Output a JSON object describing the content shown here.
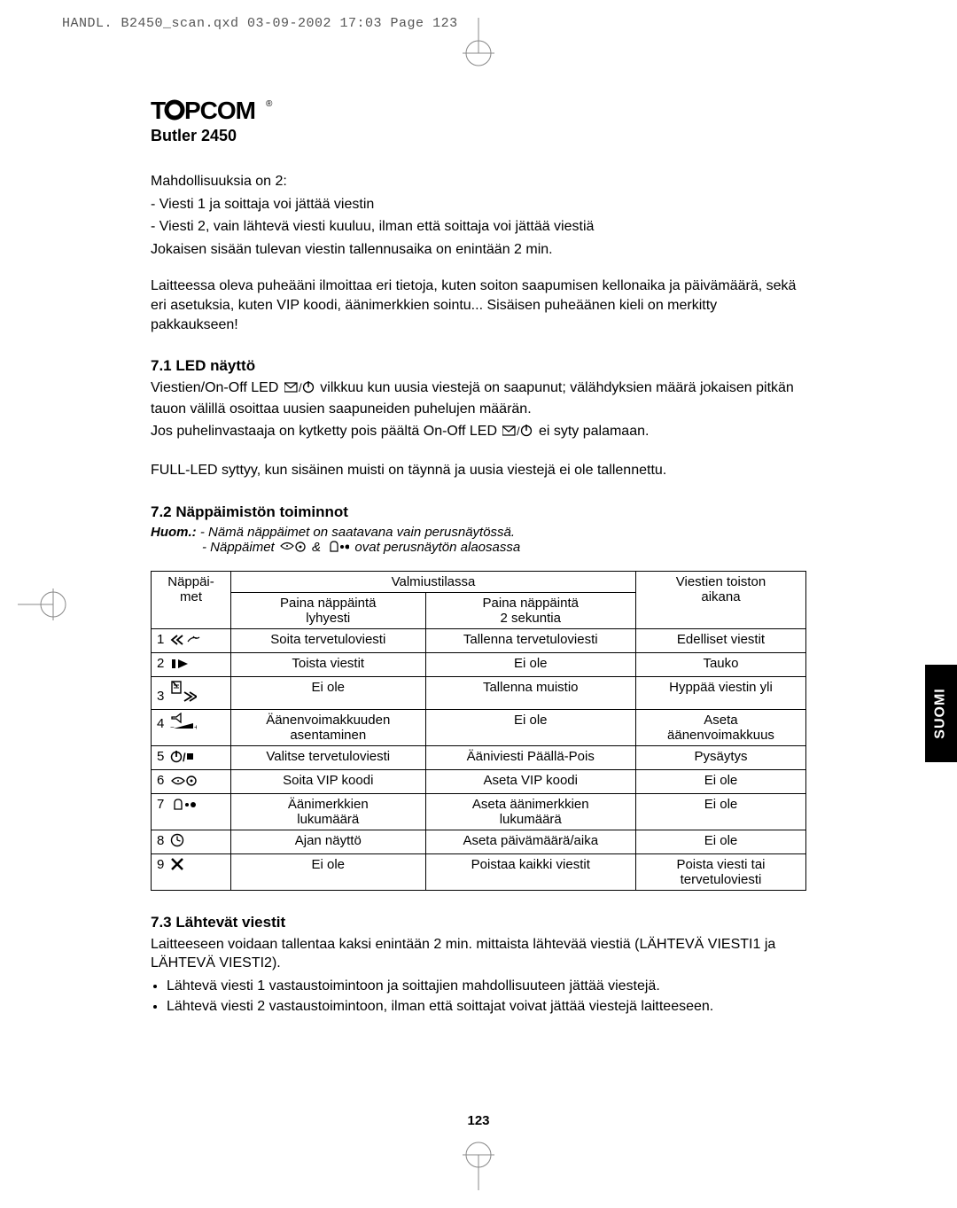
{
  "header_line": "HANDL. B2450_scan.qxd   03-09-2002   17:03   Page 123",
  "logo": {
    "brand": "TOPCOM",
    "model": "Butler 2450"
  },
  "intro": {
    "l1": "Mahdollisuuksia on 2:",
    "l2": "-  Viesti 1 ja soittaja voi jättää viestin",
    "l3": "-  Viesti 2, vain lähtevä viesti kuuluu, ilman että soittaja voi jättää viestiä",
    "l4": "Jokaisen sisään tulevan viestin tallennusaika on enintään 2 min.",
    "l5": "Laitteessa oleva puheääni ilmoittaa eri tietoja, kuten soiton saapumisen kellonaika ja päivämäärä, sekä eri asetuksia, kuten VIP koodi, äänimerkkien sointu... Sisäisen puheäänen kieli on merkitty pakkaukseen!"
  },
  "s71": {
    "title": "7.1 LED näyttö",
    "p1a": "Viestien/On-Off LED ",
    "p1b": " vilkkuu kun uusia viestejä on saapunut; välähdyksien määrä jokaisen pitkän tauon välillä osoittaa uusien saapuneiden puhelujen määrän.",
    "p2a": "Jos puhelinvastaaja on kytketty pois päältä On-Off LED ",
    "p2b": " ei syty palamaan.",
    "p3": "FULL-LED syttyy, kun sisäinen muisti on täynnä ja uusia viestejä ei ole tallennettu."
  },
  "s72": {
    "title": "7.2 Näppäimistön toiminnot",
    "note_label": "Huom.:",
    "note1": " - Nämä näppäimet on saatavana vain perusnäytössä.",
    "note2a": "- Näppäimet ",
    "note2b": " & ",
    "note2c": " ovat perusnäytön alaosassa"
  },
  "table": {
    "head": {
      "keys1": "Näppäi-",
      "keys2": "met",
      "standby": "Valmiustilassa",
      "short1": "Paina näppäintä",
      "short2": "lyhyesti",
      "long1": "Paina näppäintä",
      "long2": "2 sekuntia",
      "play1": "Viestien toiston",
      "play2": "aikana"
    },
    "rows": [
      {
        "n": "1",
        "short": "Soita tervetuloviesti",
        "long": "Tallenna tervetuloviesti",
        "play": "Edelliset viestit"
      },
      {
        "n": "2",
        "short": "Toista viestit",
        "long": "Ei ole",
        "play": "Tauko"
      },
      {
        "n": "3",
        "short": "Ei ole",
        "long": "Tallenna muistio",
        "play": "Hyppää viestin yli"
      },
      {
        "n": "4",
        "short": "Äänenvoimakkuuden\nasentaminen",
        "long": "Ei ole",
        "play": "Aseta\näänenvoimakkuus"
      },
      {
        "n": "5",
        "short": "Valitse tervetuloviesti",
        "long": "Ääniviesti Päällä-Pois",
        "play": "Pysäytys"
      },
      {
        "n": "6",
        "short": "Soita VIP koodi",
        "long": "Aseta VIP koodi",
        "play": "Ei ole"
      },
      {
        "n": "7",
        "short": "Äänimerkkien\nlukumäärä",
        "long": "Aseta äänimerkkien\nlukumäärä",
        "play": "Ei ole"
      },
      {
        "n": "8",
        "short": "Ajan näyttö",
        "long": "Aseta päivämäärä/aika",
        "play": "Ei ole"
      },
      {
        "n": "9",
        "short": "Ei ole",
        "long": "Poistaa kaikki viestit",
        "play": "Poista viesti tai\ntervetuloviesti"
      }
    ]
  },
  "s73": {
    "title": "7.3 Lähtevät viestit",
    "p1": "Laitteeseen voidaan tallentaa kaksi enintään 2 min. mittaista lähtevää viestiä (LÄHTEVÄ VIESTI1 ja LÄHTEVÄ VIESTI2).",
    "b1": "Lähtevä viesti 1 vastaustoimintoon ja soittajien mahdollisuuteen jättää viestejä.",
    "b2": "Lähtevä viesti 2 vastaustoimintoon, ilman että soittajat voivat jättää viestejä laitteeseen."
  },
  "side_tab": "SUOMI",
  "page_num": "123",
  "colors": {
    "text": "#000000",
    "bg": "#ffffff",
    "tab_bg": "#000000",
    "tab_fg": "#ffffff"
  }
}
